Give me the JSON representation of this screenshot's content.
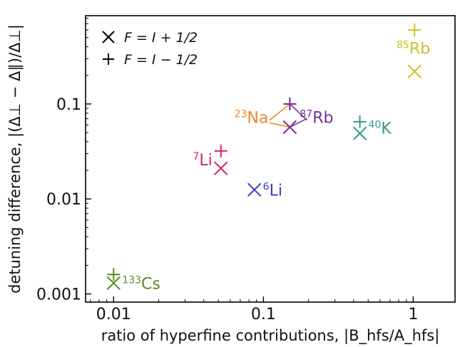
{
  "chart_data": {
    "type": "scatter",
    "xlabel": "ratio of hyperfine contributions, |B_hfs/A_hfs|",
    "ylabel": "detuning difference, |(Δ⊥ − Δ∥)/Δ⊥|",
    "xscale": "log",
    "yscale": "log",
    "xlim": [
      0.0065,
      1.9
    ],
    "ylim": [
      0.00082,
      0.85
    ],
    "x_ticks": [
      {
        "value": 0.01,
        "label": "0.01"
      },
      {
        "value": 0.1,
        "label": "0.1"
      },
      {
        "value": 1,
        "label": "1"
      }
    ],
    "y_ticks": [
      {
        "value": 0.001,
        "label": "0.001"
      },
      {
        "value": 0.01,
        "label": "0.01"
      },
      {
        "value": 0.1,
        "label": "0.1"
      }
    ],
    "grid": false,
    "legend": {
      "placement": "top-left",
      "entries": [
        {
          "marker": "x",
          "label": "F = I + 1/2"
        },
        {
          "marker": "+",
          "label": "F = I − 1/2"
        }
      ]
    },
    "series": [
      {
        "name": "F = I + 1/2",
        "marker": "x",
        "points": [
          {
            "species": "133Cs",
            "x": 0.01,
            "y": 0.0013
          },
          {
            "species": "7Li",
            "x": 0.052,
            "y": 0.021
          },
          {
            "species": "6Li",
            "x": 0.087,
            "y": 0.0125
          },
          {
            "species": "23Na",
            "x": 0.15,
            "y": 0.057
          },
          {
            "species": "87Rb",
            "x": 0.15,
            "y": 0.057
          },
          {
            "species": "40K",
            "x": 0.44,
            "y": 0.049
          },
          {
            "species": "85Rb",
            "x": 1.02,
            "y": 0.22
          }
        ]
      },
      {
        "name": "F = I − 1/2",
        "marker": "+",
        "points": [
          {
            "species": "133Cs",
            "x": 0.01,
            "y": 0.0016
          },
          {
            "species": "7Li",
            "x": 0.052,
            "y": 0.032
          },
          {
            "species": "23Na",
            "x": 0.15,
            "y": 0.1
          },
          {
            "species": "87Rb",
            "x": 0.15,
            "y": 0.1
          },
          {
            "species": "40K",
            "x": 0.44,
            "y": 0.065
          },
          {
            "species": "85Rb",
            "x": 1.02,
            "y": 0.6
          }
        ]
      }
    ],
    "labels": [
      {
        "species": "133Cs",
        "sup": "133",
        "element": "Cs",
        "x": 0.01,
        "y": 0.0013,
        "color": "#5a8a1e",
        "side": "right"
      },
      {
        "species": "7Li",
        "sup": "7",
        "element": "Li",
        "x": 0.052,
        "y": 0.026,
        "color": "#d6266a",
        "side": "left"
      },
      {
        "species": "6Li",
        "sup": "6",
        "element": "Li",
        "x": 0.087,
        "y": 0.0125,
        "color": "#3b3fbf",
        "side": "right"
      },
      {
        "species": "23Na",
        "sup": "23",
        "element": "Na",
        "x": 0.15,
        "y": 0.075,
        "color": "#e8892a",
        "side": "left"
      },
      {
        "species": "87Rb",
        "sup": "87",
        "element": "Rb",
        "x": 0.15,
        "y": 0.075,
        "color": "#7b2e9e",
        "side": "right"
      },
      {
        "species": "40K",
        "sup": "40",
        "element": "K",
        "x": 0.44,
        "y": 0.056,
        "color": "#2a9c8c",
        "side": "right"
      },
      {
        "species": "85Rb",
        "sup": "85",
        "element": "Rb",
        "x": 1.02,
        "y": 0.36,
        "color": "#c9c32a",
        "side": "left"
      }
    ],
    "connectors": [
      {
        "species": "23Na",
        "color": "#e8892a"
      },
      {
        "species": "87Rb",
        "color": "#7b2e9e"
      }
    ]
  }
}
